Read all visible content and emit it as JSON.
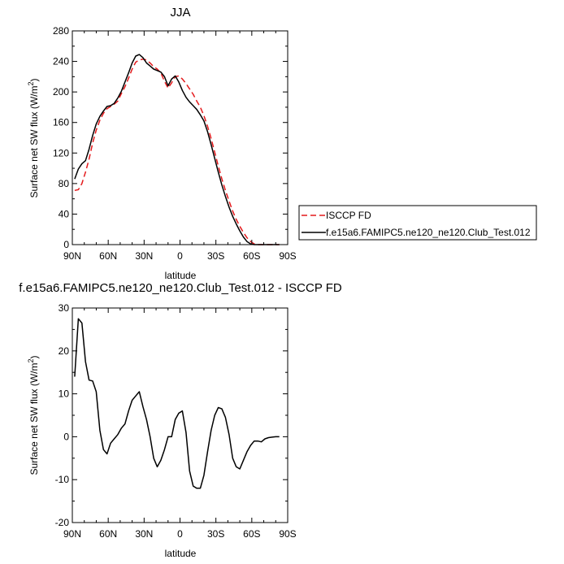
{
  "chart_data": [
    {
      "type": "line",
      "title": "JJA",
      "xlabel": "latitude",
      "ylabel": "Surface net SW flux (W/m²)",
      "xlim": [
        90,
        -90
      ],
      "ylim": [
        0,
        280
      ],
      "x_ticks": [
        90,
        60,
        30,
        0,
        -30,
        -60,
        -90
      ],
      "x_tick_labels": [
        "90N",
        "60N",
        "30N",
        "0",
        "30S",
        "60S",
        "90S"
      ],
      "y_ticks": [
        0,
        40,
        80,
        120,
        160,
        200,
        240,
        280
      ],
      "y_tick_labels": [
        "0",
        "40",
        "80",
        "120",
        "160",
        "200",
        "240",
        "280"
      ],
      "legend": "outside-right",
      "series": [
        {
          "name": "ISCCP FD",
          "color": "#e41a1c",
          "dash": "dashed",
          "x": [
            88,
            85,
            82,
            79,
            76,
            73,
            70,
            67,
            64,
            61,
            58,
            55,
            52,
            49,
            46,
            43,
            40,
            37,
            34,
            31,
            28,
            25,
            22,
            19,
            16,
            13,
            10,
            7,
            4,
            1,
            -2,
            -5,
            -8,
            -11,
            -14,
            -17,
            -20,
            -23,
            -26,
            -29,
            -32,
            -35,
            -38,
            -41,
            -44,
            -47,
            -50,
            -53,
            -56,
            -59,
            -62,
            -65,
            -68,
            -71,
            -74,
            -77,
            -80,
            -83
          ],
          "y": [
            71,
            72,
            80,
            95,
            112,
            133,
            150,
            163,
            172,
            178,
            181,
            184,
            188,
            198,
            207,
            218,
            230,
            239,
            242,
            243,
            242,
            238,
            233,
            230,
            225,
            214,
            205,
            212,
            220,
            221,
            217,
            211,
            204,
            197,
            188,
            180,
            169,
            155,
            139,
            121,
            103,
            86,
            71,
            57,
            44,
            33,
            24,
            16,
            9,
            4,
            1,
            0,
            0,
            0,
            0,
            0,
            0,
            0
          ]
        },
        {
          "name": "f.e15a6.FAMIPC5.ne120_ne120.Club_Test.012",
          "color": "#000000",
          "dash": "solid",
          "x": [
            88,
            85,
            82,
            79,
            76,
            73,
            70,
            67,
            64,
            61,
            58,
            55,
            52,
            49,
            46,
            43,
            40,
            37,
            34,
            31,
            28,
            25,
            22,
            19,
            16,
            13,
            10,
            7,
            4,
            1,
            -2,
            -5,
            -8,
            -11,
            -14,
            -17,
            -20,
            -23,
            -26,
            -29,
            -32,
            -35,
            -38,
            -41,
            -44,
            -47,
            -50,
            -53,
            -56,
            -59,
            -62,
            -65,
            -68,
            -71,
            -74,
            -77,
            -80,
            -83
          ],
          "y": [
            86,
            99,
            106,
            110,
            125,
            143,
            158,
            168,
            175,
            181,
            182,
            185,
            192,
            201,
            213,
            225,
            238,
            247,
            249,
            245,
            238,
            234,
            230,
            228,
            226,
            220,
            208,
            217,
            221,
            213,
            202,
            193,
            187,
            182,
            177,
            170,
            162,
            148,
            131,
            113,
            95,
            78,
            63,
            49,
            37,
            27,
            18,
            10,
            4,
            1,
            0,
            0,
            0,
            0,
            0,
            0,
            0,
            0
          ]
        }
      ]
    },
    {
      "type": "line",
      "title": "f.e15a6.FAMIPC5.ne120_ne120.Club_Test.012 - ISCCP FD",
      "xlabel": "latitude",
      "ylabel": "Surface net SW flux (W/m²)",
      "xlim": [
        90,
        -90
      ],
      "ylim": [
        -20,
        30
      ],
      "x_ticks": [
        90,
        60,
        30,
        0,
        -30,
        -60,
        -90
      ],
      "x_tick_labels": [
        "90N",
        "60N",
        "30N",
        "0",
        "30S",
        "60S",
        "90S"
      ],
      "y_ticks": [
        -20,
        -10,
        0,
        10,
        20,
        30
      ],
      "y_tick_labels": [
        "-20",
        "-10",
        "0",
        "10",
        "20",
        "30"
      ],
      "series": [
        {
          "color": "#000000",
          "dash": "solid",
          "x": [
            88,
            85,
            82,
            79,
            76,
            73,
            70,
            67,
            64,
            61,
            58,
            55,
            52,
            49,
            46,
            43,
            40,
            37,
            34,
            31,
            28,
            25,
            22,
            19,
            16,
            13,
            10,
            7,
            4,
            1,
            -2,
            -5,
            -8,
            -11,
            -14,
            -17,
            -20,
            -23,
            -26,
            -29,
            -32,
            -35,
            -38,
            -41,
            -44,
            -47,
            -50,
            -53,
            -56,
            -59,
            -62,
            -65,
            -68,
            -71,
            -74,
            -77,
            -80,
            -83
          ],
          "y": [
            14,
            27.5,
            26.5,
            17.5,
            13.2,
            13,
            10.5,
            1.5,
            -3,
            -4,
            -1.5,
            -0.5,
            0.5,
            2,
            3,
            6,
            8.5,
            9.5,
            10.5,
            7,
            4,
            0,
            -5,
            -7,
            -5.5,
            -3,
            0,
            0,
            4,
            5.5,
            6,
            1,
            -8,
            -11.5,
            -12,
            -12,
            -9,
            -3.5,
            1.5,
            5,
            6.8,
            6.5,
            4.5,
            0.5,
            -5,
            -7,
            -7.5,
            -5.5,
            -3.5,
            -2,
            -1,
            -1,
            -1.2,
            -0.5,
            -0.2,
            -0.1,
            0,
            0
          ]
        }
      ]
    }
  ]
}
